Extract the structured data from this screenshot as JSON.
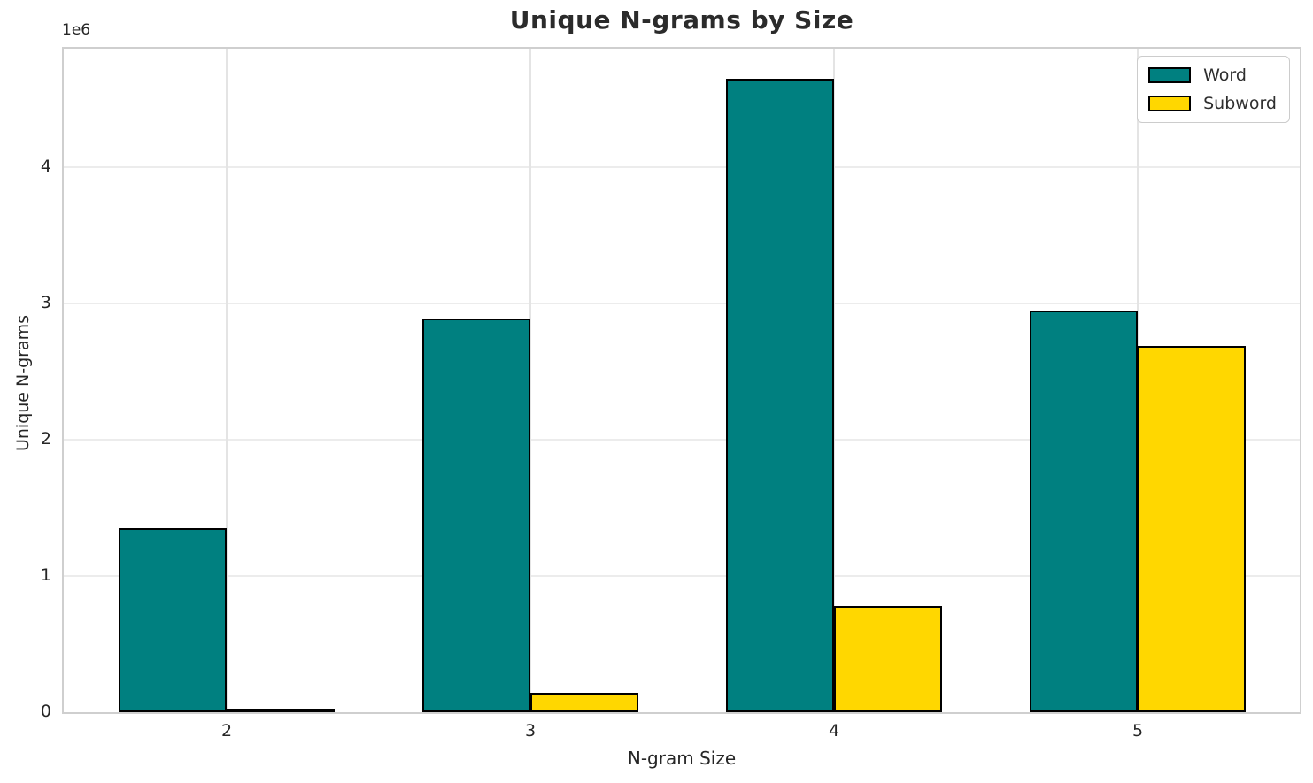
{
  "figure": {
    "title": "Unique N-grams by Size",
    "xlabel": "N-gram Size",
    "ylabel": "Unique N-grams",
    "offset_text": "1e6"
  },
  "chart_data": {
    "type": "bar",
    "title": "Unique N-grams by Size",
    "xlabel": "N-gram Size",
    "ylabel": "Unique N-grams",
    "y_offset_text": "1e6",
    "categories": [
      "2",
      "3",
      "4",
      "5"
    ],
    "series": [
      {
        "name": "Word",
        "color": "#008080",
        "values": [
          1350000,
          2890000,
          4650000,
          2950000
        ]
      },
      {
        "name": "Subword",
        "color": "#FFD700",
        "values": [
          25000,
          140000,
          780000,
          2690000
        ]
      }
    ],
    "ylim": [
      0,
      4870000
    ],
    "yticks": [
      0,
      1000000,
      2000000,
      3000000,
      4000000
    ],
    "ytick_labels": [
      "0",
      "1",
      "2",
      "3",
      "4"
    ],
    "grid": true,
    "legend_position": "upper right",
    "bar_edge_color": "#000000",
    "colors": {
      "grid_h": "#ececec",
      "grid_v": "#e4e4e4",
      "spine": "#cfcfcf",
      "text": "#262626"
    }
  }
}
